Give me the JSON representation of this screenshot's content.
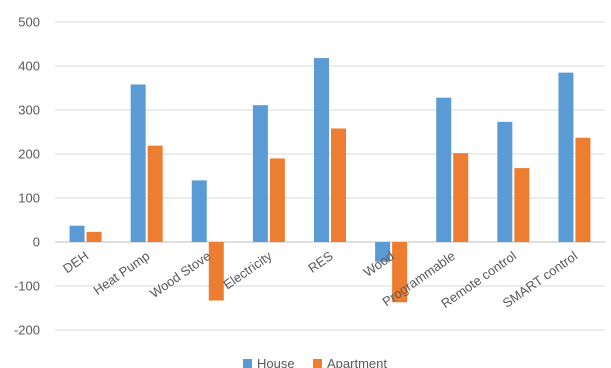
{
  "chart_data": {
    "type": "bar",
    "title": "",
    "xlabel": "",
    "ylabel": "",
    "ylim": [
      -200,
      500
    ],
    "yticks": [
      -200,
      -100,
      0,
      100,
      200,
      300,
      400,
      500
    ],
    "grid": true,
    "legend_position": "bottom",
    "categories": [
      "DEH",
      "Heat Pump",
      "Wood Stove",
      "Electricity",
      "RES",
      "Wood",
      "Programmable",
      "Remote control",
      "SMART control"
    ],
    "series": [
      {
        "name": "House",
        "color": "#5B9BD5",
        "values": [
          37,
          358,
          140,
          311,
          418,
          -45,
          328,
          273,
          385
        ]
      },
      {
        "name": "Apartment",
        "color": "#ED7D31",
        "values": [
          23,
          219,
          -133,
          190,
          258,
          -137,
          202,
          168,
          237
        ]
      }
    ]
  }
}
